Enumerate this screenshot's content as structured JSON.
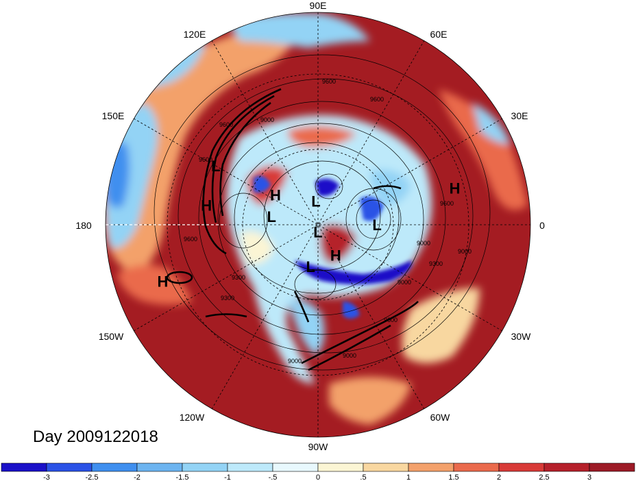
{
  "title": "Day 2009122018",
  "longitude_labels": {
    "north": "90E",
    "top_left": "120E",
    "top_right": "60E",
    "upper_left": "150E",
    "upper_right": "30E",
    "left": "180",
    "right": "0",
    "lower_left": "150W",
    "lower_right": "30W",
    "bottom_left": "120W",
    "bottom_right": "60W",
    "south": "90W"
  },
  "pressure_centers": [
    {
      "type": "L",
      "lon": 150,
      "lat": 40
    },
    {
      "type": "H",
      "lon": 170,
      "lat": 42
    },
    {
      "type": "H",
      "lon": 15,
      "lat": 30
    },
    {
      "type": "H",
      "lon": 145,
      "lat": 68
    },
    {
      "type": "L",
      "lon": 170,
      "lat": 70
    },
    {
      "type": "L",
      "lon": 95,
      "lat": 80
    },
    {
      "type": "L",
      "lon": 270,
      "lat": 87
    },
    {
      "type": "L",
      "lon": 0,
      "lat": 65
    },
    {
      "type": "H",
      "lon": 300,
      "lat": 75
    },
    {
      "type": "L",
      "lon": 260,
      "lat": 72
    },
    {
      "type": "H",
      "lon": 200,
      "lat": 20
    }
  ],
  "contour_labels": [
    "9600",
    "9600",
    "9300",
    "9300",
    "9000",
    "9000",
    "9600",
    "9600",
    "9000",
    "9000",
    "9600",
    "9300",
    "9000",
    "9600",
    "9600",
    "9000"
  ],
  "colorbar": {
    "labels": [
      "-3",
      "-2.5",
      "-2",
      "-1.5",
      "-1",
      "-.5",
      "0",
      ".5",
      "1",
      "1.5",
      "2",
      "2.5",
      "3"
    ],
    "colors": [
      "#1a10c8",
      "#2a52e6",
      "#3f8fef",
      "#6cb4f0",
      "#93d3f5",
      "#bde9fa",
      "#e8f8fd",
      "#fbf5d4",
      "#f8d7a0",
      "#f3a16b",
      "#ea6a4c",
      "#d83a37",
      "#b5202a",
      "#9c1a26"
    ]
  },
  "map_colors": {
    "positive_dark": "#a41c22",
    "positive": "#d83a37",
    "warm": "#f3a16b",
    "neutral": "#fbf5d4",
    "cool": "#93d3f5",
    "cold": "#3f8fef",
    "very_cold": "#1a10c8"
  }
}
